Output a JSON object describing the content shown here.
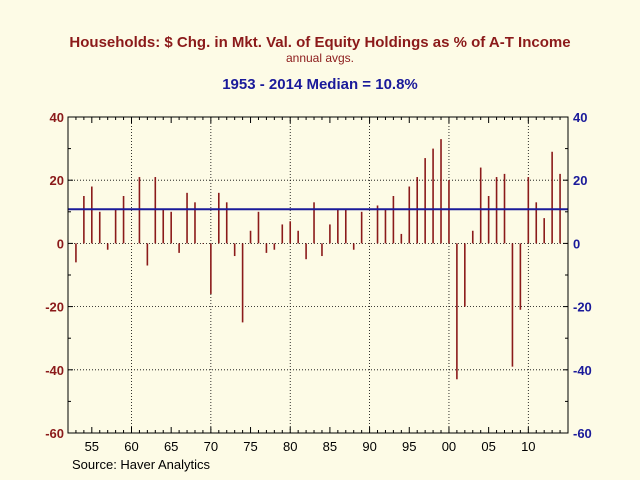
{
  "header": {
    "title": "Households: $ Chg. in Mkt. Val. of Equity Holdings as % of A-T Income",
    "subtitle": "annual avgs.",
    "median_label": "1953 - 2014 Median = 10.8%"
  },
  "footer": {
    "source": "Source:   Haver Analytics"
  },
  "colors": {
    "bars": "#8b1a1a",
    "median": "#1a1a9a",
    "background": "#fdfbe6"
  },
  "chart_data": {
    "type": "bar",
    "title": "Households: $ Chg. in Mkt. Val. of Equity Holdings as % of A-T Income",
    "subtitle": "annual avgs.",
    "xlabel": "",
    "ylabel": "",
    "ylim": [
      -60,
      40
    ],
    "xlim": [
      1952,
      2015
    ],
    "yticks": [
      40,
      20,
      0,
      -20,
      -40,
      -60
    ],
    "xtick_labels": [
      "55",
      "60",
      "65",
      "70",
      "75",
      "80",
      "85",
      "90",
      "95",
      "00",
      "05",
      "10"
    ],
    "xtick_years": [
      1955,
      1960,
      1965,
      1970,
      1975,
      1980,
      1985,
      1990,
      1995,
      2000,
      2005,
      2010
    ],
    "years": [
      1953,
      1954,
      1955,
      1956,
      1957,
      1958,
      1959,
      1960,
      1961,
      1962,
      1963,
      1964,
      1965,
      1966,
      1967,
      1968,
      1969,
      1970,
      1971,
      1972,
      1973,
      1974,
      1975,
      1976,
      1977,
      1978,
      1979,
      1980,
      1981,
      1982,
      1983,
      1984,
      1985,
      1986,
      1987,
      1988,
      1989,
      1990,
      1991,
      1992,
      1993,
      1994,
      1995,
      1996,
      1997,
      1998,
      1999,
      2000,
      2001,
      2002,
      2003,
      2004,
      2005,
      2006,
      2007,
      2008,
      2009,
      2010,
      2011,
      2012,
      2013,
      2014
    ],
    "values": [
      -6,
      15,
      18,
      10,
      -2,
      11,
      15,
      0,
      21,
      -7,
      21,
      11,
      10,
      -3,
      16,
      13,
      0,
      -16,
      16,
      13,
      -4,
      -25,
      4,
      10,
      -3,
      -2,
      6,
      7,
      4,
      -5,
      13,
      -4,
      6,
      11,
      11,
      -2,
      10,
      0,
      12,
      11,
      15,
      3,
      18,
      21,
      27,
      30,
      33,
      20,
      -43,
      -20,
      4,
      24,
      15,
      21,
      22,
      -39,
      -21,
      21,
      13,
      8,
      29,
      22
    ],
    "median": 10.8,
    "median_label": "1953 - 2014 Median = 10.8%",
    "grid": true,
    "right_axis": true,
    "source": "Source:   Haver Analytics"
  }
}
